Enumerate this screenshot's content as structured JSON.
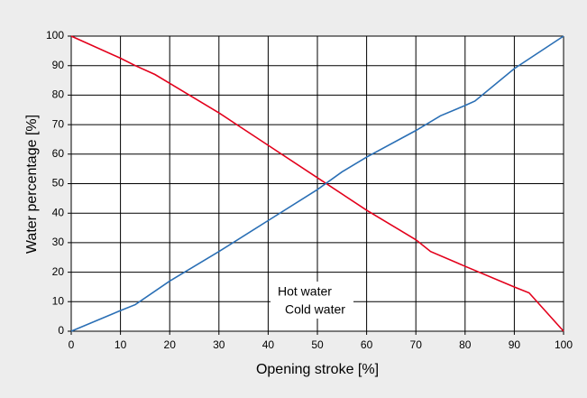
{
  "chart_data": {
    "type": "line",
    "xlabel": "Opening stroke [%]",
    "ylabel": "Water percentage [%]",
    "x": [
      0,
      10,
      13,
      17,
      20,
      30,
      40,
      50,
      55,
      60,
      70,
      73,
      75,
      80,
      82,
      90,
      93,
      100
    ],
    "series": [
      {
        "name": "Hot water",
        "color": "#e3001b",
        "values": [
          100,
          92.5,
          90,
          87,
          84,
          74,
          63,
          52,
          null,
          41,
          31,
          27,
          null,
          22,
          null,
          15,
          13,
          0
        ]
      },
      {
        "name": "Cold water",
        "color": "#2a6fb5",
        "values": [
          0,
          7,
          9,
          null,
          17,
          27,
          37.5,
          48,
          54,
          59,
          68,
          null,
          73,
          76.5,
          78,
          89,
          null,
          100
        ]
      }
    ],
    "xlim": [
      0,
      100
    ],
    "ylim": [
      0,
      100
    ],
    "xticks": [
      0,
      10,
      20,
      30,
      40,
      50,
      60,
      70,
      80,
      90,
      100
    ],
    "yticks": [
      0,
      10,
      20,
      30,
      40,
      50,
      60,
      70,
      80,
      90,
      100
    ],
    "grid": true,
    "legend": "lower center"
  }
}
